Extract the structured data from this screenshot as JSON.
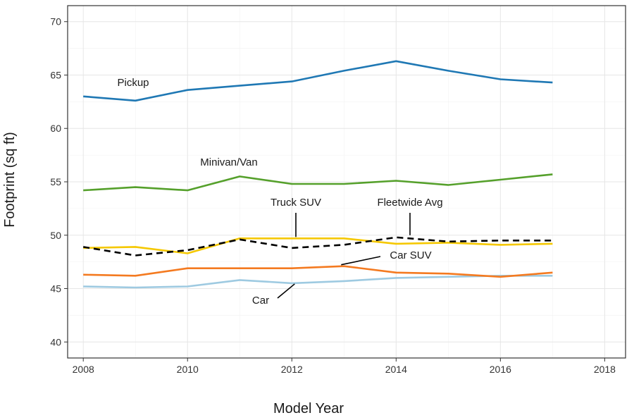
{
  "chart_data": {
    "type": "line",
    "title": "",
    "xlabel": "Model Year",
    "ylabel": "Footprint (sq ft)",
    "xlim": [
      2007.7,
      2018.4
    ],
    "ylim": [
      38.5,
      71.5
    ],
    "x_ticks": [
      2008,
      2010,
      2012,
      2014,
      2016,
      2018
    ],
    "y_ticks": [
      40,
      45,
      50,
      55,
      60,
      65,
      70
    ],
    "grid": true,
    "legend": "none",
    "x": [
      2008,
      2009,
      2010,
      2011,
      2012,
      2013,
      2014,
      2015,
      2016,
      2017
    ],
    "series": [
      {
        "name": "Pickup",
        "color": "#1f78b4",
        "dash": false,
        "values": [
          63.0,
          62.6,
          63.6,
          64.0,
          64.4,
          65.4,
          66.3,
          65.4,
          64.6,
          64.3
        ]
      },
      {
        "name": "Minivan/Van",
        "color": "#55a02b",
        "dash": false,
        "values": [
          54.2,
          54.5,
          54.2,
          55.5,
          54.8,
          54.8,
          55.1,
          54.7,
          55.2,
          55.7
        ]
      },
      {
        "name": "Truck SUV",
        "color": "#f5c800",
        "dash": false,
        "values": [
          48.8,
          48.9,
          48.3,
          49.7,
          49.7,
          49.7,
          49.2,
          49.3,
          49.1,
          49.2
        ]
      },
      {
        "name": "Fleetwide Avg",
        "color": "#000000",
        "dash": true,
        "values": [
          48.9,
          48.1,
          48.6,
          49.6,
          48.8,
          49.1,
          49.8,
          49.4,
          49.5,
          49.5
        ]
      },
      {
        "name": "Car SUV",
        "color": "#f47a20",
        "dash": false,
        "values": [
          46.3,
          46.2,
          46.9,
          46.9,
          46.9,
          47.1,
          46.5,
          46.4,
          46.1,
          46.5
        ]
      },
      {
        "name": "Car",
        "color": "#9ecae1",
        "dash": false,
        "values": [
          45.2,
          45.1,
          45.2,
          45.8,
          45.5,
          45.7,
          46.0,
          46.1,
          46.2,
          46.2
        ]
      }
    ]
  }
}
